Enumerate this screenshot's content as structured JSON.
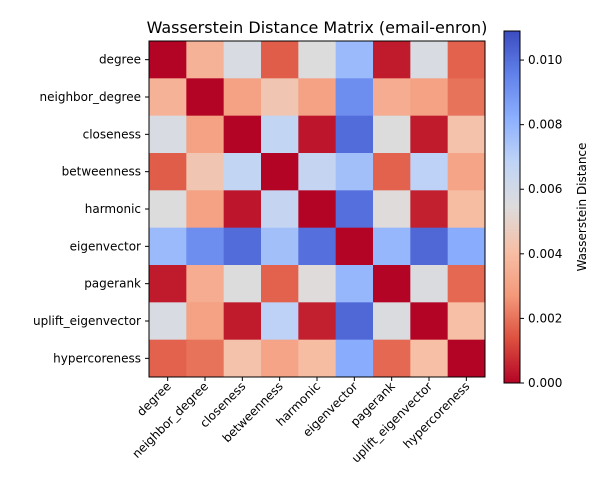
{
  "chart_data": {
    "type": "heatmap",
    "title": "Wasserstein Distance Matrix (email-enron)",
    "rows": [
      "degree",
      "neighbor_degree",
      "closeness",
      "betweenness",
      "harmonic",
      "eigenvector",
      "pagerank",
      "uplift_eigenvector",
      "hypercoreness"
    ],
    "cols": [
      "degree",
      "neighbor_degree",
      "closeness",
      "betweenness",
      "harmonic",
      "eigenvector",
      "pagerank",
      "uplift_eigenvector",
      "hypercoreness"
    ],
    "values": [
      [
        0.0,
        0.0036,
        0.0057,
        0.0016,
        0.0055,
        0.0078,
        0.0004,
        0.0057,
        0.0017
      ],
      [
        0.0036,
        0.0,
        0.003,
        0.0044,
        0.003,
        0.0092,
        0.0034,
        0.003,
        0.002
      ],
      [
        0.0057,
        0.003,
        0.0,
        0.0067,
        0.0003,
        0.0101,
        0.0055,
        0.0004,
        0.0042
      ],
      [
        0.0016,
        0.0044,
        0.0067,
        0.0,
        0.0066,
        0.0076,
        0.0017,
        0.0069,
        0.0031
      ],
      [
        0.0055,
        0.003,
        0.0003,
        0.0066,
        0.0,
        0.01,
        0.0054,
        0.0005,
        0.004
      ],
      [
        0.0078,
        0.0092,
        0.0101,
        0.0076,
        0.01,
        0.0,
        0.0079,
        0.0102,
        0.0083
      ],
      [
        0.0004,
        0.0034,
        0.0055,
        0.0017,
        0.0054,
        0.0079,
        0.0,
        0.0056,
        0.0018
      ],
      [
        0.0057,
        0.003,
        0.0004,
        0.0069,
        0.0005,
        0.0102,
        0.0056,
        0.0,
        0.0041
      ],
      [
        0.0017,
        0.002,
        0.0042,
        0.0031,
        0.004,
        0.0083,
        0.0018,
        0.0041,
        0.0
      ]
    ],
    "colorbar": {
      "label": "Wasserstein Distance",
      "vmin": 0.0,
      "vmax": 0.0109,
      "ticks": [
        "0.000",
        "0.002",
        "0.004",
        "0.006",
        "0.008",
        "0.010"
      ],
      "tick_values": [
        0.0,
        0.002,
        0.004,
        0.006,
        0.008,
        0.01
      ]
    },
    "colormap": "coolwarm_r",
    "grid": false
  }
}
